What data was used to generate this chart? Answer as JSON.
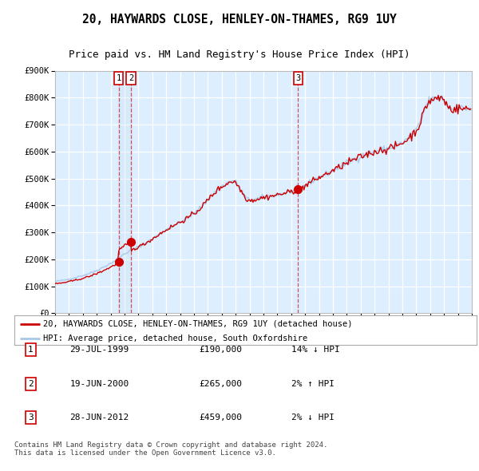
{
  "title": "20, HAYWARDS CLOSE, HENLEY-ON-THAMES, RG9 1UY",
  "subtitle": "Price paid vs. HM Land Registry's House Price Index (HPI)",
  "title_fontsize": 10.5,
  "subtitle_fontsize": 9,
  "legend_line1": "20, HAYWARDS CLOSE, HENLEY-ON-THAMES, RG9 1UY (detached house)",
  "legend_line2": "HPI: Average price, detached house, South Oxfordshire",
  "sale1_date": "29-JUL-1999",
  "sale1_price": 190000,
  "sale1_hpi": "14% ↓ HPI",
  "sale2_date": "19-JUN-2000",
  "sale2_price": 265000,
  "sale2_hpi": "2% ↑ HPI",
  "sale3_date": "28-JUN-2012",
  "sale3_price": 459000,
  "sale3_hpi": "2% ↓ HPI",
  "hpi_color": "#a8c8e8",
  "price_color": "#cc0000",
  "vline_color": "#cc0000",
  "sale_dot_color": "#cc0000",
  "plot_bg_color": "#ddeeff",
  "grid_color": "#ffffff",
  "footer": "Contains HM Land Registry data © Crown copyright and database right 2024.\nThis data is licensed under the Open Government Licence v3.0.",
  "ylim": [
    0,
    900000
  ],
  "yticks": [
    0,
    100000,
    200000,
    300000,
    400000,
    500000,
    600000,
    700000,
    800000,
    900000
  ],
  "sale1_x": 1999.57,
  "sale2_x": 2000.47,
  "sale3_x": 2012.49,
  "xstart": 1995.0,
  "xend": 2025.0
}
